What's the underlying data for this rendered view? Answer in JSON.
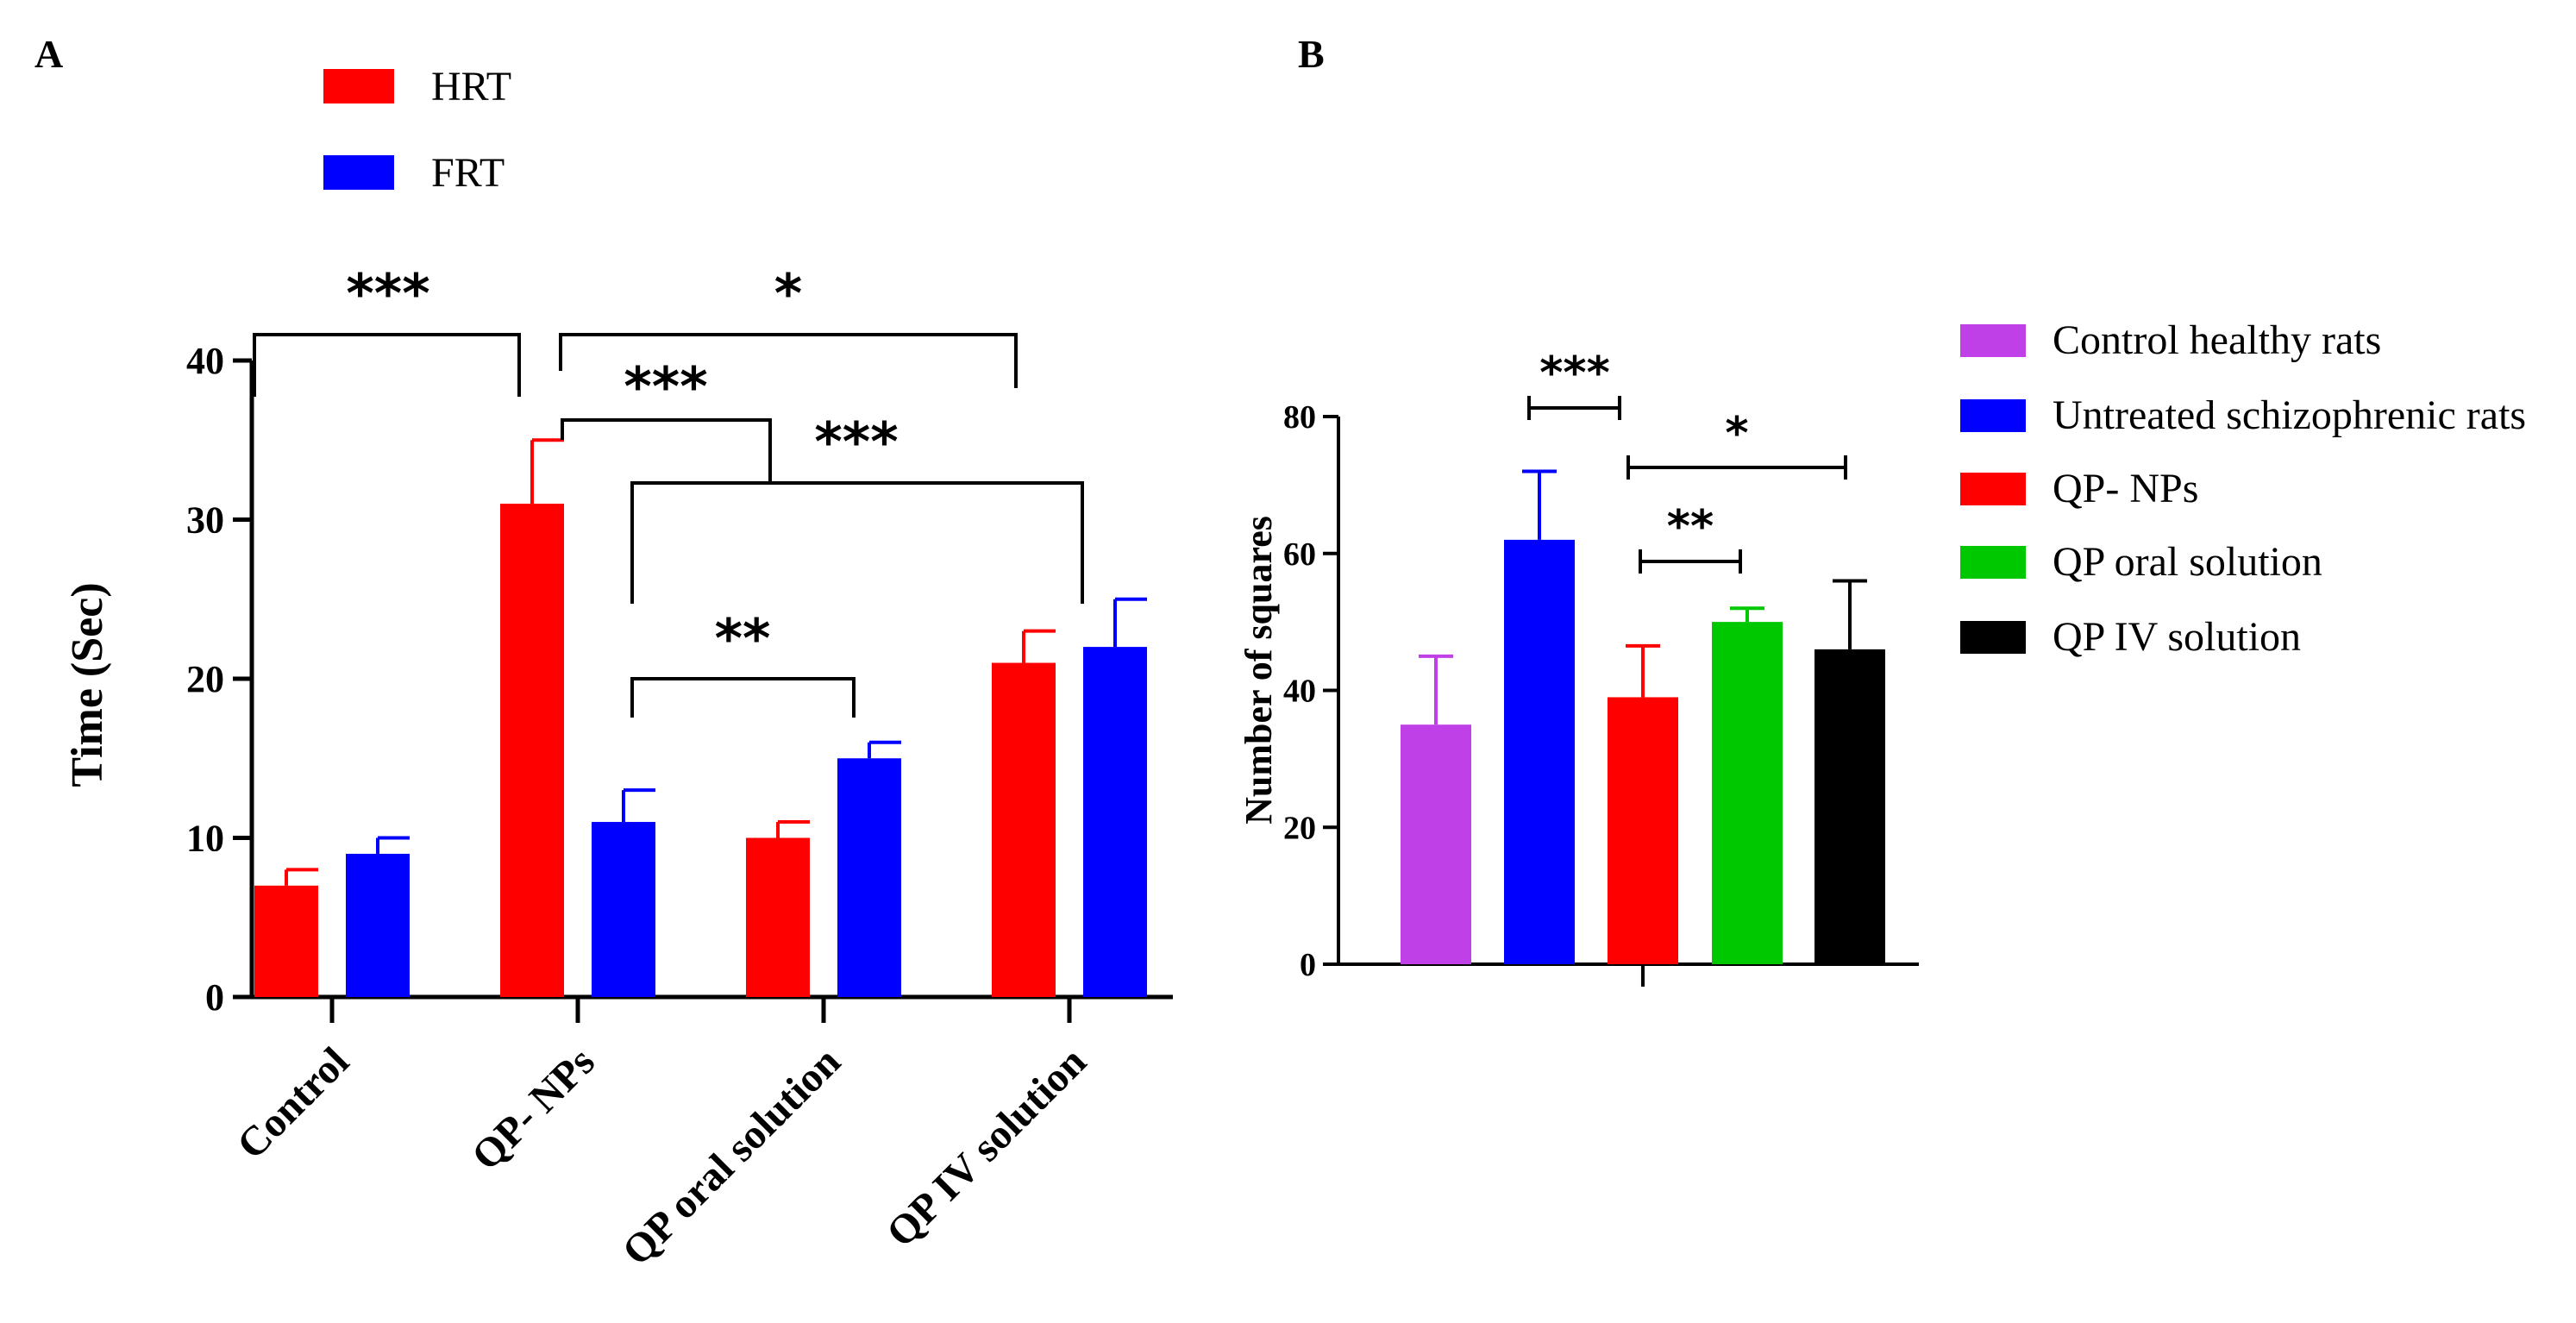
{
  "panels": {
    "a_letter": "A",
    "b_letter": "B"
  },
  "chart_data": [
    {
      "type": "bar",
      "panel": "A",
      "categories": [
        "Control",
        "QP- NPs",
        "QP oral solution",
        "QP IV solution"
      ],
      "ylabel": "Time (Sec)",
      "ylim": [
        0,
        40
      ],
      "yticks": [
        0,
        10,
        20,
        30,
        40
      ],
      "legend_position": "top-left",
      "series": [
        {
          "name": "HRT",
          "color": "#ff0000",
          "values": [
            7,
            31,
            10,
            21
          ],
          "errors": [
            1,
            4,
            1,
            2
          ]
        },
        {
          "name": "FRT",
          "color": "#0000ff",
          "values": [
            9,
            11,
            15,
            22
          ],
          "errors": [
            1,
            2,
            1,
            3
          ]
        }
      ],
      "significance": [
        {
          "label": "***",
          "from": "Control",
          "to": "QP- NPs"
        },
        {
          "label": "*",
          "from": "QP- NPs",
          "to": "QP IV solution"
        },
        {
          "label": "***",
          "from": "QP- NPs",
          "to": "QP- NPs FRT group"
        },
        {
          "label": "***",
          "from": "QP- NPs FRT",
          "to": "QP IV solution"
        },
        {
          "label": "**",
          "from": "QP- NPs FRT",
          "to": "QP oral solution FRT"
        }
      ]
    },
    {
      "type": "bar",
      "panel": "B",
      "ylabel": "Number of squares",
      "ylim": [
        0,
        80
      ],
      "yticks": [
        0,
        20,
        40,
        60,
        80
      ],
      "legend_position": "right",
      "bars": [
        {
          "name": "Control healthy rats",
          "color": "#c040e8",
          "value": 35,
          "error": 10
        },
        {
          "name": "Untreated schizophrenic rats",
          "color": "#0000ff",
          "value": 62,
          "error": 10
        },
        {
          "name": "QP- NPs",
          "color": "#ff0000",
          "value": 39,
          "error": 7.5
        },
        {
          "name": "QP oral solution",
          "color": "#00c800",
          "value": 50,
          "error": 2
        },
        {
          "name": "QP IV solution",
          "color": "#000000",
          "value": 46,
          "error": 10
        }
      ],
      "significance": [
        {
          "label": "***",
          "from": "Control healthy rats",
          "to": "Untreated schizophrenic rats"
        },
        {
          "label": "*",
          "from": "QP- NPs",
          "to": "QP IV solution"
        },
        {
          "label": "**",
          "from": "QP- NPs",
          "to": "QP oral solution"
        }
      ]
    }
  ]
}
